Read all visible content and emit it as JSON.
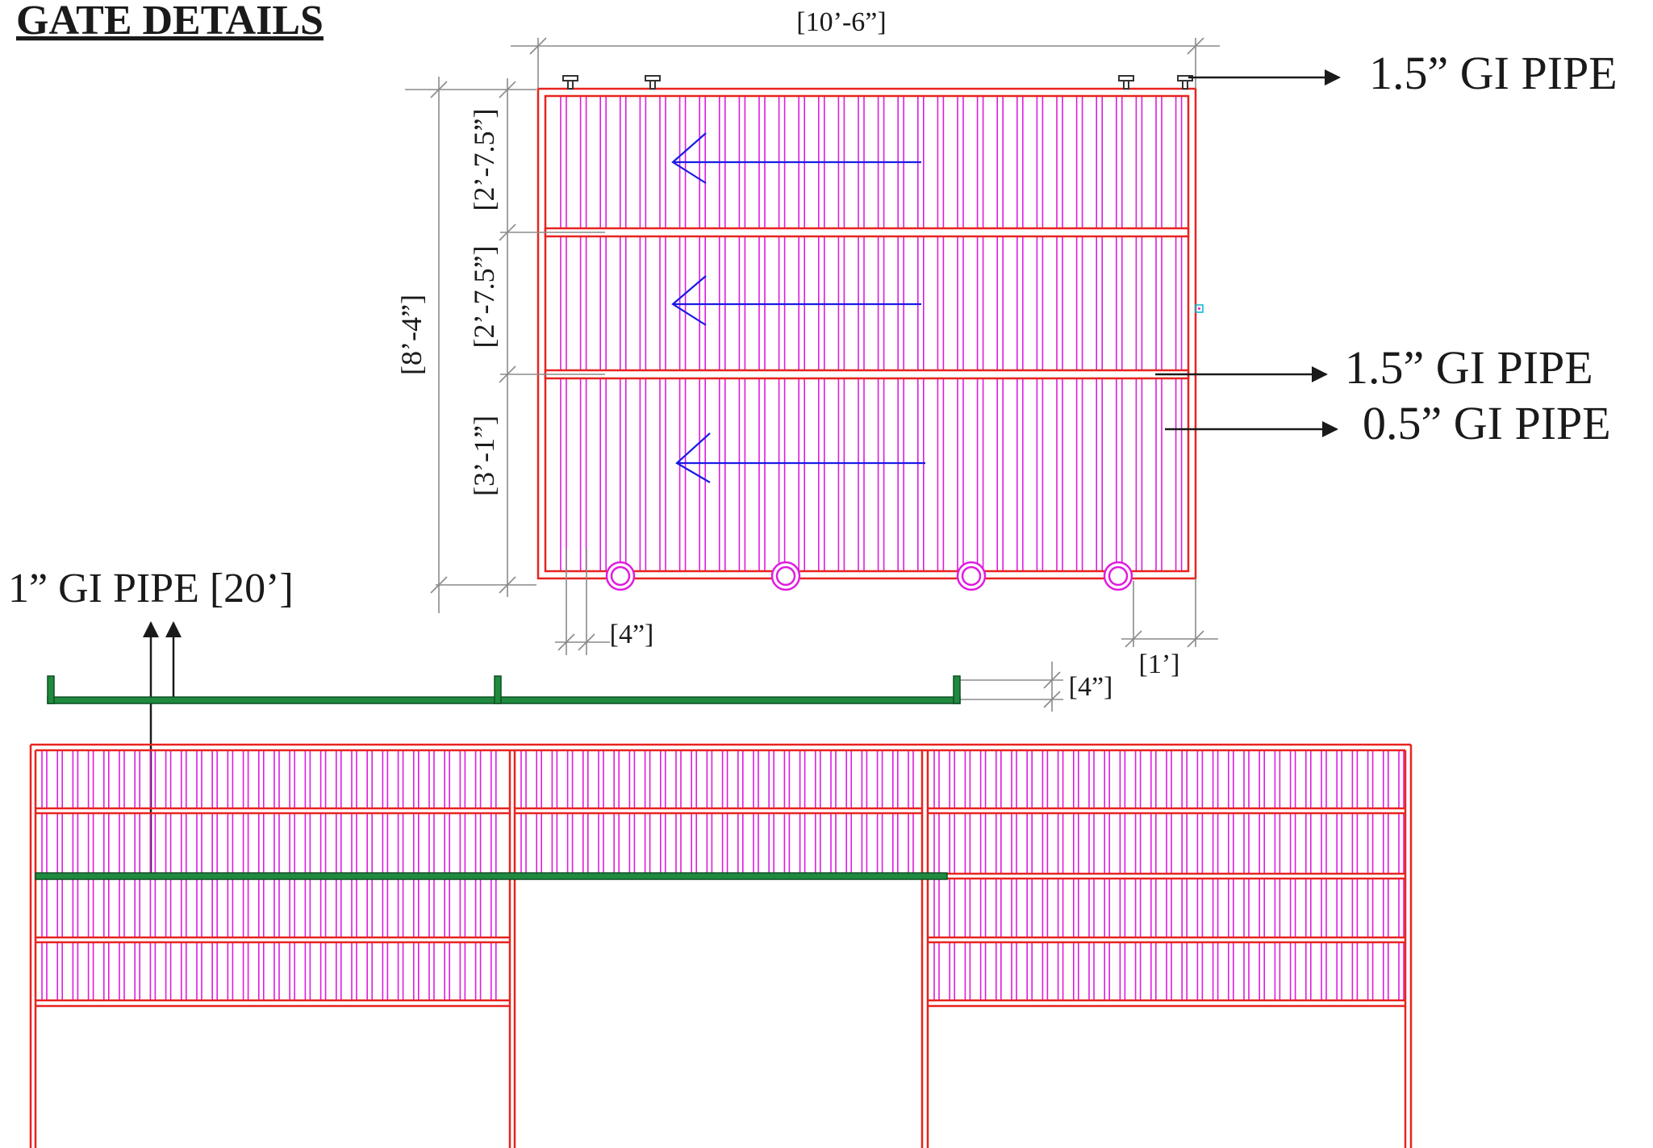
{
  "title": "GATE DETAILS",
  "dimensions": {
    "overall_width": "[10’-6”]",
    "overall_height": "[8’-4”]",
    "panel_top": "[2’-7.5”]",
    "panel_middle": "[2’-7.5”]",
    "panel_bottom": "[3’-1”]",
    "bar_spacing": "[4”]",
    "wheel_offset": "[1’]",
    "rail_height": "[4”]"
  },
  "labels": {
    "top_pipe": "1.5” GI PIPE",
    "mid_pipe": "1.5” GI PIPE",
    "bar_pipe": "0.5” GI PIPE",
    "rail_pipe": "1” GI PIPE [20’]"
  },
  "colors": {
    "frame": "#e8231f",
    "bars": "#e01be0",
    "arrows": "#1a1ae6",
    "rail": "#1f8a3f",
    "dimension": "#8a8a8a",
    "leader": "#1a1a1a"
  }
}
